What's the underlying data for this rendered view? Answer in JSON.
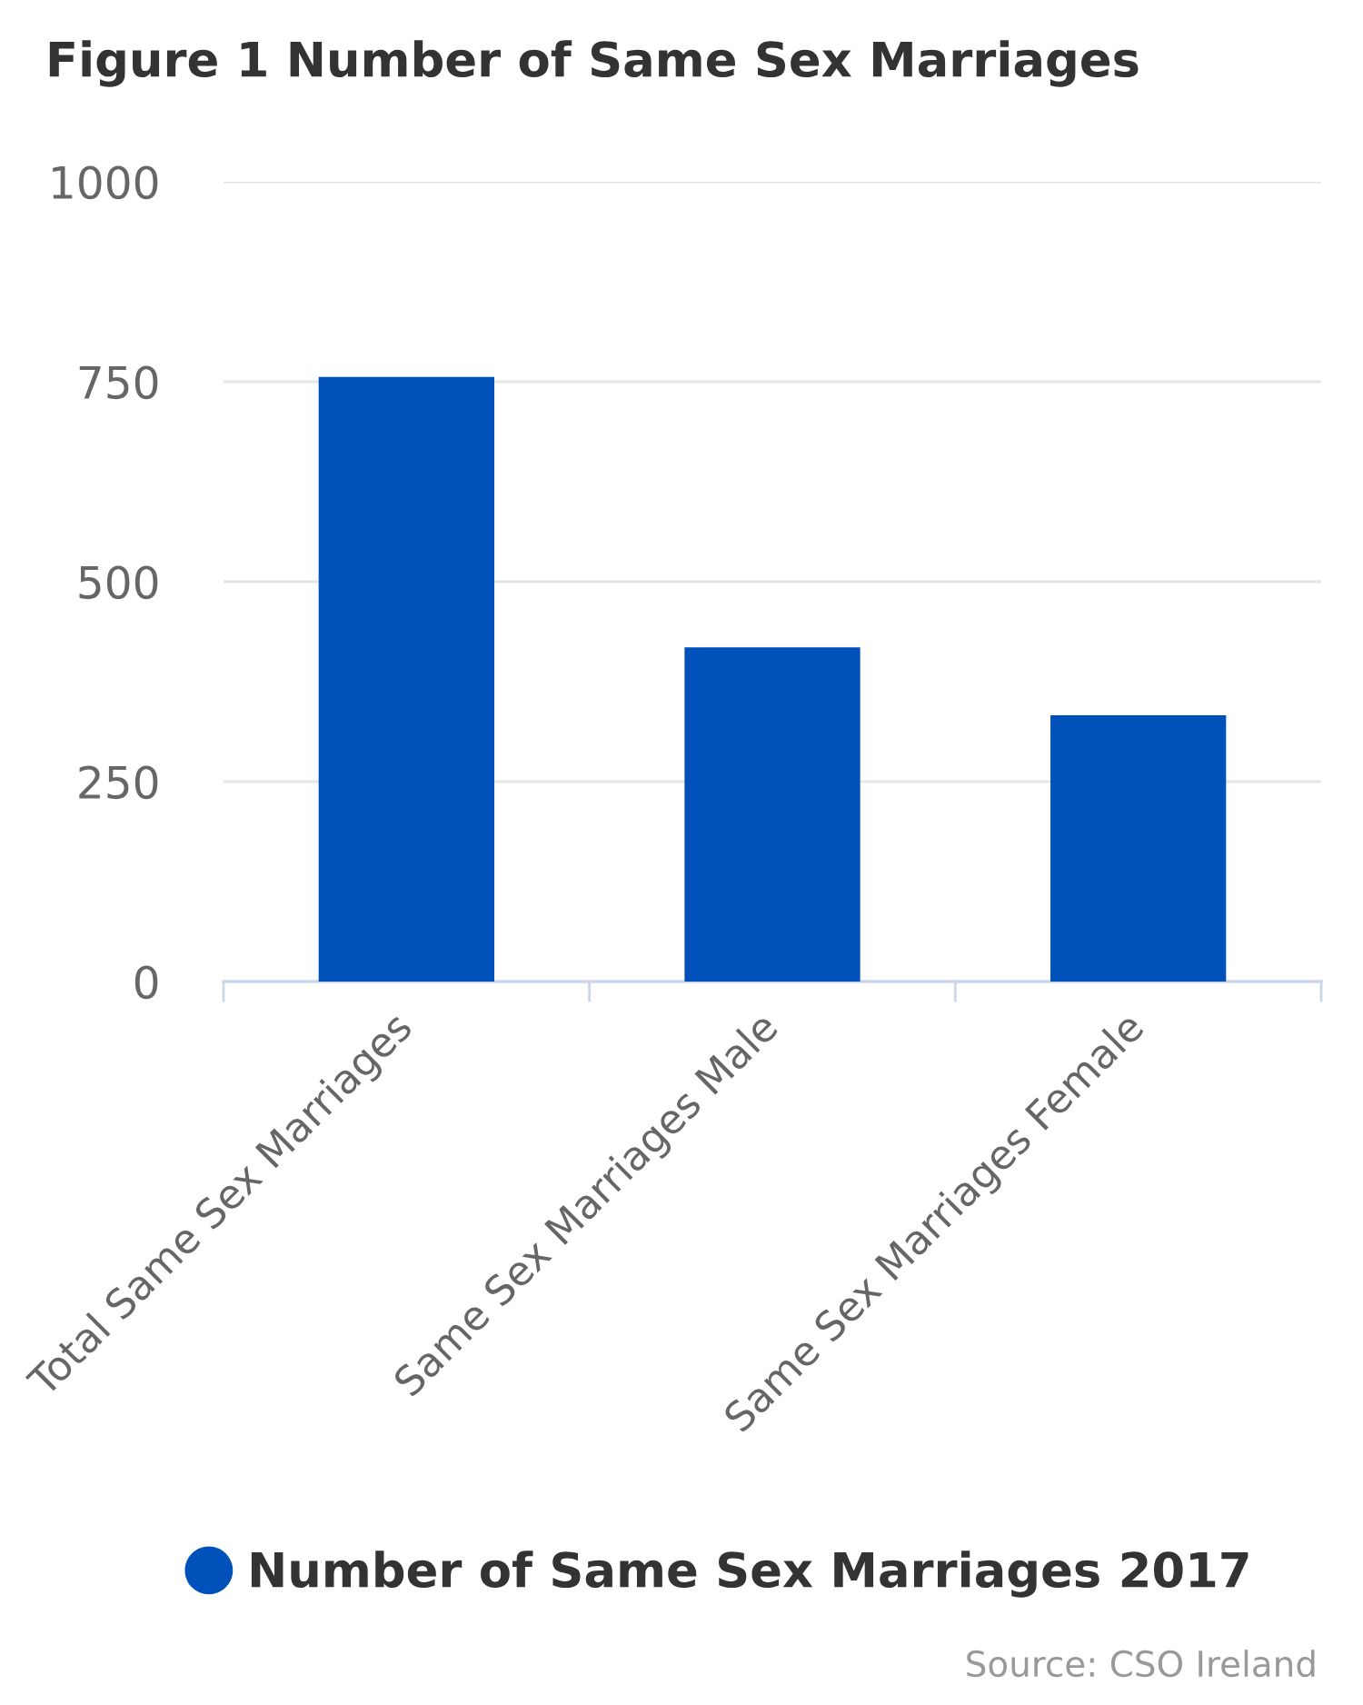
{
  "chart_data": {
    "type": "bar",
    "title": "Figure 1 Number of Same Sex Marriages",
    "categories": [
      "Total Same Sex Marriages",
      "Same Sex Marriages Male",
      "Same Sex Marriages Female"
    ],
    "series": [
      {
        "name": "Number of Same Sex Marriages 2017",
        "color": "#0051ba",
        "values": [
          756,
          418,
          333
        ]
      }
    ],
    "ylim": [
      0,
      1000
    ],
    "yticks": [
      0,
      250,
      500,
      750,
      1000
    ],
    "grid": "y",
    "legend": "bottom",
    "annotations": [
      "Source: CSO Ireland"
    ]
  }
}
